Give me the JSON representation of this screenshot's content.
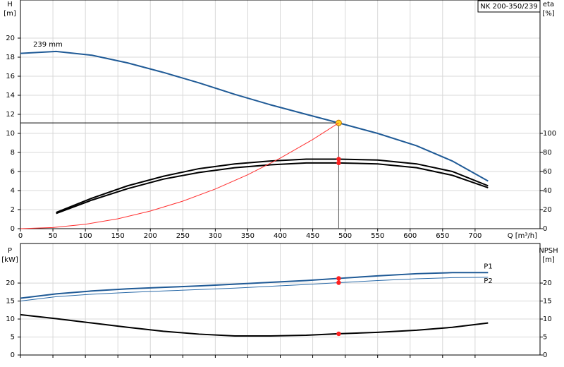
{
  "chart_data": [
    {
      "type": "line",
      "title": "NK 200-350/239",
      "xlabel": "Q [m³/h]",
      "ylabel": [
        "H",
        "[m]"
      ],
      "y2label": [
        "eta",
        "[%]"
      ],
      "xlim": [
        0,
        800
      ],
      "xticks": [
        0,
        50,
        100,
        150,
        200,
        250,
        300,
        350,
        400,
        450,
        500,
        550,
        600,
        650,
        700
      ],
      "ylim": [
        0,
        24
      ],
      "yticks": [
        0,
        2,
        4,
        6,
        8,
        10,
        12,
        14,
        16,
        18,
        20
      ],
      "y2lim": [
        0,
        240
      ],
      "y2ticks": [
        0,
        20,
        40,
        60,
        80,
        100
      ],
      "grid": true,
      "duty_x": 490,
      "series": [
        {
          "name": "239 mm",
          "label_at": "start",
          "color": "#1f5a96",
          "dot_color": "#ffd21f",
          "x": [
            0,
            55,
            110,
            165,
            220,
            275,
            330,
            385,
            440,
            490,
            550,
            610,
            665,
            720
          ],
          "values": [
            18.4,
            18.6,
            18.2,
            17.4,
            16.4,
            15.3,
            14.1,
            13.0,
            12.0,
            11.1,
            10.0,
            8.7,
            7.1,
            5.0
          ]
        },
        {
          "color": "#000000",
          "axis": "y2",
          "dot_color": "#ff2020",
          "x": [
            55,
            110,
            165,
            220,
            275,
            330,
            385,
            440,
            490,
            550,
            610,
            665,
            720
          ],
          "values": [
            17,
            32,
            45,
            55,
            63,
            68,
            71,
            73,
            73,
            72,
            68,
            60,
            45
          ]
        },
        {
          "color": "#000000",
          "axis": "y2",
          "dot_color": "#ff2020",
          "x": [
            55,
            110,
            165,
            220,
            275,
            330,
            385,
            440,
            490,
            550,
            610,
            665,
            720
          ],
          "values": [
            16,
            30,
            42,
            52,
            59,
            64,
            67,
            69,
            69,
            68,
            64,
            56,
            43
          ]
        },
        {
          "color": "#ff3030",
          "style": "thin",
          "x": [
            0,
            50,
            100,
            150,
            200,
            250,
            300,
            350,
            400,
            450,
            490
          ],
          "values": [
            0,
            0.12,
            0.46,
            1.04,
            1.85,
            2.89,
            4.16,
            5.66,
            7.4,
            9.36,
            11.1
          ]
        }
      ]
    },
    {
      "type": "line",
      "ylabel": [
        "P",
        "[kW]"
      ],
      "y2label": [
        "NPSH",
        "[m]"
      ],
      "ylim": [
        0,
        31
      ],
      "yticks": [
        0,
        5,
        10,
        15,
        20
      ],
      "y2ticks": [
        0,
        5,
        10,
        15,
        20
      ],
      "grid": true,
      "duty_x": 490,
      "series": [
        {
          "name": "P1",
          "label_at": "end",
          "color": "#1f5a96",
          "dot_color": "#ff2020",
          "x": [
            0,
            55,
            110,
            165,
            220,
            275,
            330,
            385,
            440,
            490,
            550,
            610,
            665,
            720
          ],
          "values": [
            15.8,
            17,
            17.8,
            18.4,
            18.8,
            19.2,
            19.7,
            20.2,
            20.7,
            21.3,
            22,
            22.6,
            22.9,
            22.9
          ]
        },
        {
          "name": "P2",
          "label_at": "end",
          "color": "#2a6aa8",
          "style": "thin",
          "dot_color": "#ff2020",
          "x": [
            0,
            55,
            110,
            165,
            220,
            275,
            330,
            385,
            440,
            490,
            550,
            610,
            665,
            720
          ],
          "values": [
            15,
            16.2,
            16.9,
            17.4,
            17.8,
            18.2,
            18.6,
            19.1,
            19.6,
            20.1,
            20.7,
            21.2,
            21.5,
            21.6
          ]
        },
        {
          "color": "#000000",
          "dot_color": "#ff2020",
          "x": [
            0,
            55,
            110,
            165,
            220,
            275,
            330,
            385,
            440,
            490,
            550,
            610,
            665,
            720
          ],
          "values": [
            11.2,
            10.1,
            8.9,
            7.7,
            6.6,
            5.8,
            5.3,
            5.3,
            5.5,
            5.9,
            6.3,
            6.9,
            7.7,
            8.9
          ]
        }
      ]
    }
  ]
}
